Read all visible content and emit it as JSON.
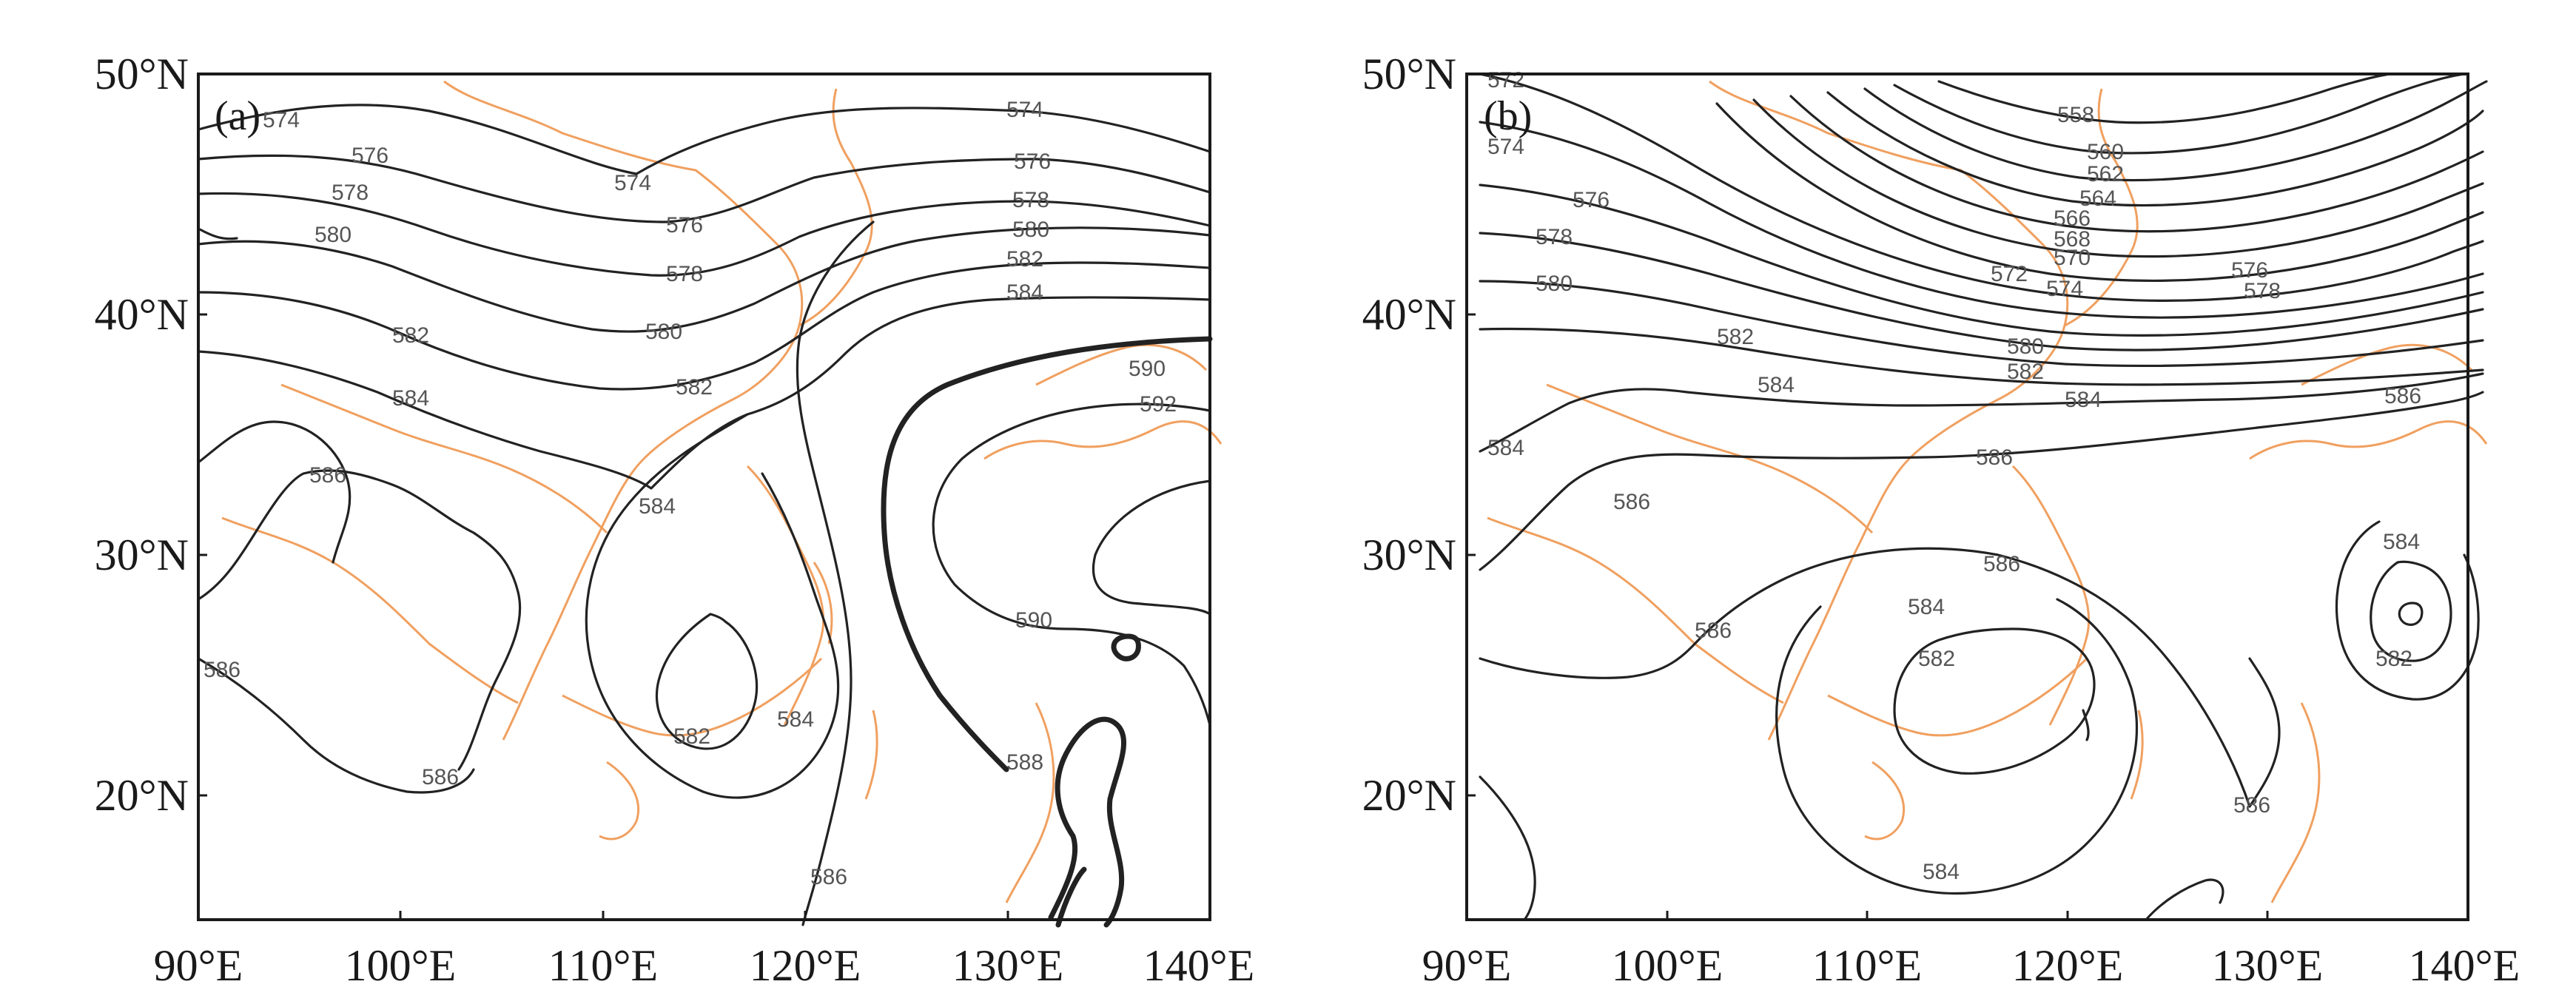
{
  "panels": [
    {
      "label": "(a)",
      "x_ticks": [
        "90°E",
        "100°E",
        "110°E",
        "120°E",
        "130°E",
        "140°E"
      ],
      "y_ticks": [
        "20°N",
        "30°N",
        "40°N",
        "50°N"
      ],
      "contour_labels": [
        "574",
        "576",
        "578",
        "580",
        "582",
        "584",
        "586",
        "588",
        "590",
        "592"
      ]
    },
    {
      "label": "(b)",
      "x_ticks": [
        "90°E",
        "100°E",
        "110°E",
        "120°E",
        "130°E",
        "140°E"
      ],
      "y_ticks": [
        "20°N",
        "30°N",
        "40°N",
        "50°N"
      ],
      "contour_labels": [
        "558",
        "560",
        "562",
        "564",
        "566",
        "568",
        "570",
        "572",
        "574",
        "576",
        "578",
        "580",
        "582",
        "584",
        "586"
      ]
    }
  ],
  "colors": {
    "coastline": "#f0a060",
    "contour": "#222222",
    "frame": "#1a1a1a"
  }
}
